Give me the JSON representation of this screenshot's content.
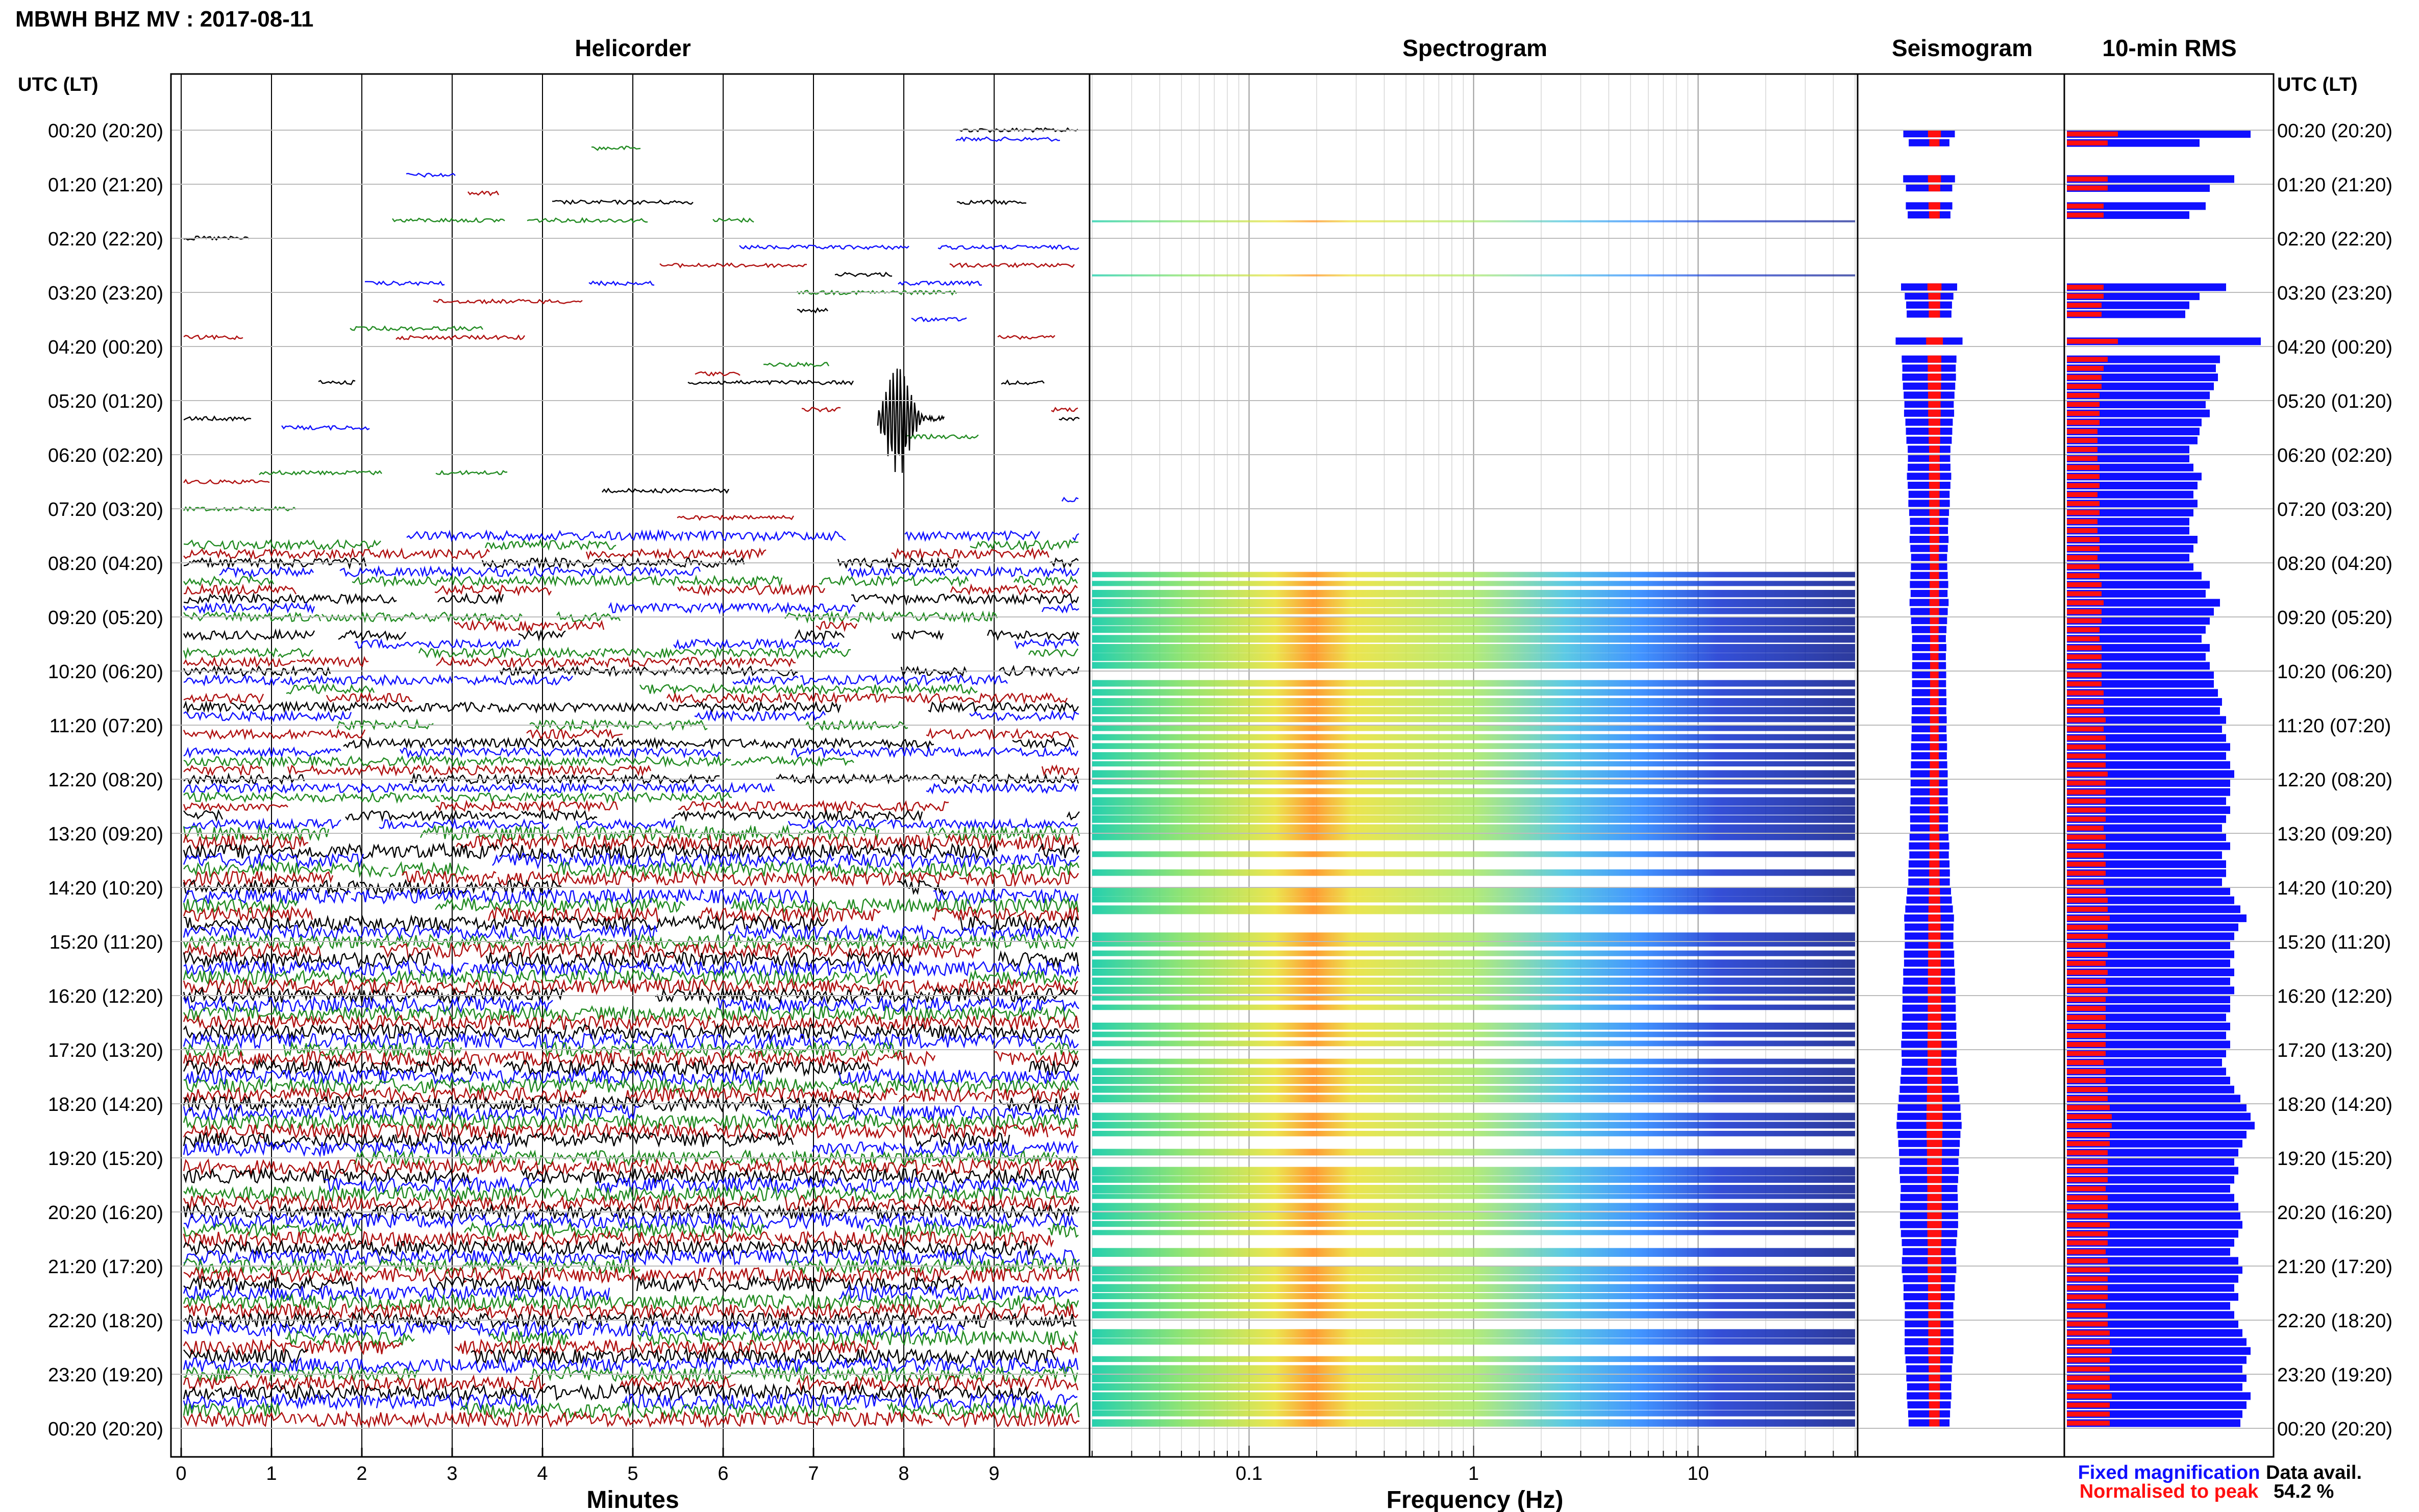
{
  "header": {
    "title": "MBWH BHZ MV : 2017-08-11"
  },
  "panels": {
    "helicorder": "Helicorder",
    "spectrogram": "Spectrogram",
    "seismogram": "Seismogram",
    "rms": "10-min RMS"
  },
  "axes": {
    "utc_label_left": "UTC (LT)",
    "utc_label_right": "UTC (LT)",
    "minutes_label": "Minutes",
    "frequency_label": "Frequency (Hz)"
  },
  "legend": {
    "fixed": "Fixed magnification",
    "normalised": "Normalised to peak",
    "fixed_color": "#1010ff",
    "normalised_color": "#ff1010"
  },
  "availability": {
    "label": "Data avail.",
    "value": "54.2 %"
  },
  "chart_data": {
    "type": "heatmap",
    "time_ticks": [
      "00:20 (20:20)",
      "01:20 (21:20)",
      "02:20 (22:20)",
      "03:20 (23:20)",
      "04:20 (00:20)",
      "05:20 (01:20)",
      "06:20 (02:20)",
      "07:20 (03:20)",
      "08:20 (04:20)",
      "09:20 (05:20)",
      "10:20 (06:20)",
      "11:20 (07:20)",
      "12:20 (08:20)",
      "13:20 (09:20)",
      "14:20 (10:20)",
      "15:20 (11:20)",
      "16:20 (12:20)",
      "17:20 (13:20)",
      "18:20 (14:20)",
      "19:20 (15:20)",
      "20:20 (16:20)",
      "21:20 (17:20)",
      "22:20 (18:20)",
      "23:20 (19:20)",
      "00:20 (20:20)"
    ],
    "minute_ticks": [
      "0",
      "1",
      "2",
      "3",
      "4",
      "5",
      "6",
      "7",
      "8",
      "9"
    ],
    "frequency_ticks": [
      "0.1",
      "1",
      "10"
    ],
    "frequency_range_hz": [
      0.02,
      50
    ],
    "trace_colors": [
      "#000000",
      "#1010ff",
      "#228b22",
      "#b01010"
    ],
    "rms_fixed": [
      0.9,
      0.65,
      0,
      0,
      0,
      0.82,
      0.7,
      0,
      0.68,
      0.6,
      0,
      0,
      0,
      0,
      0,
      0,
      0,
      0.78,
      0.65,
      0.6,
      0.58,
      0,
      0,
      0.95,
      0,
      0.75,
      0.73,
      0.74,
      0.72,
      0.7,
      0.68,
      0.7,
      0.66,
      0.65,
      0.64,
      0.6,
      0.6,
      0.62,
      0.66,
      0.64,
      0.62,
      0.64,
      0.62,
      0.6,
      0.6,
      0.64,
      0.62,
      0.6,
      0.62,
      0.66,
      0.7,
      0.68,
      0.75,
      0.72,
      0.7,
      0.68,
      0.66,
      0.7,
      0.68,
      0.7,
      0.72,
      0.72,
      0.74,
      0.76,
      0.75,
      0.78,
      0.76,
      0.78,
      0.8,
      0.78,
      0.8,
      0.82,
      0.8,
      0.8,
      0.78,
      0.8,
      0.78,
      0.76,
      0.78,
      0.8,
      0.76,
      0.78,
      0.78,
      0.76,
      0.8,
      0.82,
      0.85,
      0.88,
      0.84,
      0.82,
      0.8,
      0.82,
      0.8,
      0.82,
      0.8,
      0.82,
      0.8,
      0.8,
      0.78,
      0.8,
      0.78,
      0.8,
      0.78,
      0.76,
      0.78,
      0.8,
      0.82,
      0.85,
      0.88,
      0.9,
      0.92,
      0.88,
      0.86,
      0.84,
      0.82,
      0.84,
      0.82,
      0.8,
      0.82,
      0.84,
      0.85,
      0.86,
      0.84,
      0.82,
      0.8,
      0.84,
      0.86,
      0.84,
      0.82,
      0.84,
      0.8,
      0.82,
      0.84,
      0.86,
      0.88,
      0.9,
      0.88,
      0.86,
      0.88,
      0.86,
      0.9,
      0.88,
      0.86,
      0.85
    ],
    "rms_normalised": [
      0.25,
      0.2,
      0,
      0,
      0,
      0.2,
      0.2,
      0,
      0.18,
      0.18,
      0,
      0,
      0,
      0,
      0,
      0,
      0,
      0.18,
      0.18,
      0.17,
      0.17,
      0,
      0,
      0.25,
      0,
      0.2,
      0.18,
      0.17,
      0.17,
      0.16,
      0.16,
      0.16,
      0.16,
      0.15,
      0.15,
      0.15,
      0.15,
      0.16,
      0.16,
      0.16,
      0.15,
      0.16,
      0.16,
      0.15,
      0.15,
      0.16,
      0.16,
      0.15,
      0.16,
      0.16,
      0.17,
      0.17,
      0.18,
      0.17,
      0.17,
      0.16,
      0.16,
      0.17,
      0.17,
      0.17,
      0.17,
      0.17,
      0.18,
      0.18,
      0.18,
      0.19,
      0.18,
      0.19,
      0.19,
      0.19,
      0.19,
      0.2,
      0.19,
      0.19,
      0.19,
      0.19,
      0.19,
      0.18,
      0.19,
      0.19,
      0.18,
      0.19,
      0.19,
      0.18,
      0.19,
      0.2,
      0.2,
      0.21,
      0.2,
      0.2,
      0.19,
      0.2,
      0.19,
      0.2,
      0.19,
      0.2,
      0.19,
      0.19,
      0.19,
      0.19,
      0.19,
      0.19,
      0.19,
      0.18,
      0.19,
      0.19,
      0.2,
      0.2,
      0.21,
      0.22,
      0.22,
      0.21,
      0.21,
      0.2,
      0.2,
      0.2,
      0.2,
      0.19,
      0.2,
      0.2,
      0.2,
      0.21,
      0.2,
      0.2,
      0.19,
      0.2,
      0.21,
      0.2,
      0.2,
      0.2,
      0.19,
      0.2,
      0.2,
      0.21,
      0.21,
      0.22,
      0.21,
      0.21,
      0.21,
      0.21,
      0.22,
      0.21,
      0.21,
      0.21
    ]
  }
}
